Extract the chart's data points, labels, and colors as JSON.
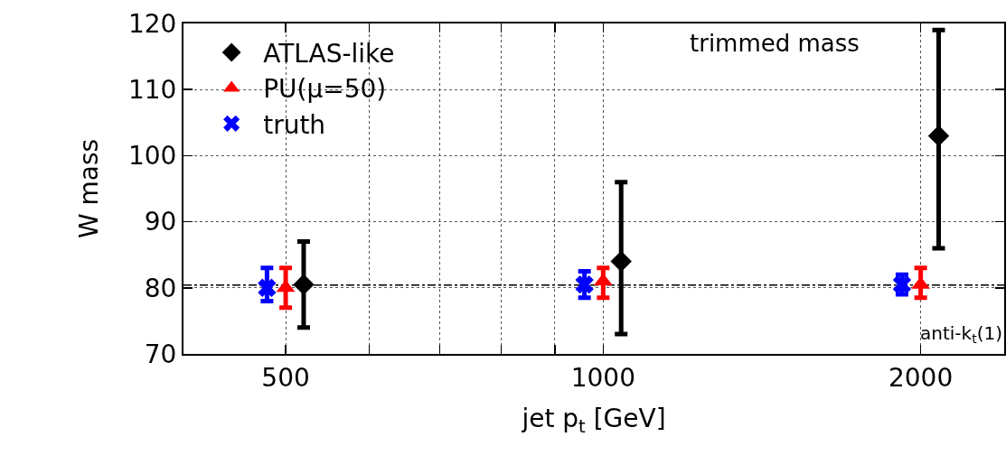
{
  "chart_data": {
    "type": "scatter",
    "xlabel": "jet p$_{t}$ [GeV]",
    "ylabel": "W mass",
    "log": "x",
    "xlim": [
      400,
      2400
    ],
    "xticks": [
      500,
      {
        "value": 600,
        "label": null
      },
      {
        "value": 700,
        "label": null
      },
      {
        "value": 800,
        "label": null
      },
      {
        "value": 900,
        "label": null
      },
      1000,
      2000
    ],
    "ylim": [
      70,
      120
    ],
    "yticks": [
      70,
      80,
      90,
      100,
      110,
      120
    ],
    "grid": true,
    "legend": "top left",
    "series": [
      {
        "name": "ATLAS-like",
        "color": "#000000",
        "marker": "diamond",
        "x": [
          520,
          1040,
          2080
        ],
        "values": [
          80.5,
          84,
          103
        ],
        "errors": [
          [
            74,
            87
          ],
          [
            73,
            96
          ],
          [
            86,
            119
          ]
        ]
      },
      {
        "name": "PU(μ=50)",
        "color": "#ff0000",
        "marker": "triangle",
        "x": [
          500,
          1000,
          2000
        ],
        "values": [
          80,
          81,
          80.5
        ],
        "errors": [
          [
            77,
            83
          ],
          [
            78.5,
            83
          ],
          [
            78.5,
            83
          ]
        ]
      },
      {
        "name": "truth",
        "color": "#0000ff",
        "marker": "cross",
        "x": [
          480,
          960,
          1920
        ],
        "values": [
          80,
          80.5,
          80.5
        ],
        "errors": [
          [
            78,
            83
          ],
          [
            78.5,
            82.5
          ],
          [
            79,
            82
          ]
        ]
      }
    ],
    "ref_lines": [
      {
        "axis": "y",
        "value": 80.4,
        "color": "#000000",
        "line_style": "dashed"
      }
    ],
    "annotations": [
      "trimmed mass",
      "anti-k$_{t}$(1)"
    ]
  }
}
